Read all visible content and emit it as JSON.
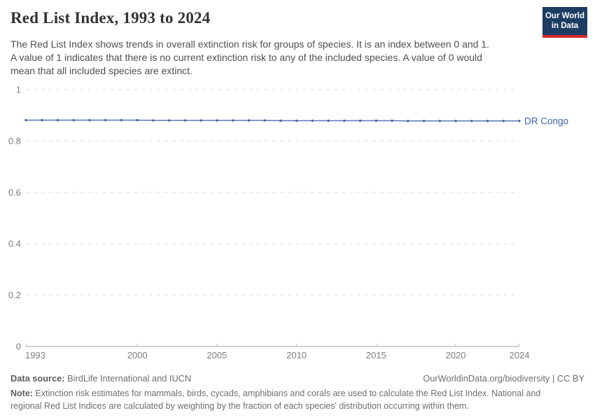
{
  "header": {
    "title": "Red List Index, 1993 to 2024",
    "subtitle": "The Red List Index shows trends in overall extinction risk for groups of species. It is an index between 0 and 1.\nA value of 1 indicates that there is no current extinction risk to any of the included species. A value of 0 would\nmean that all included species are extinct."
  },
  "logo": {
    "line1": "Our World",
    "line2": "in Data",
    "bg_color": "#1d3d63",
    "bar_color": "#d42b2f"
  },
  "chart_data": {
    "type": "line",
    "title": "Red List Index, 1993 to 2024",
    "xlabel": "",
    "ylabel": "",
    "xlim": [
      1993,
      2024
    ],
    "ylim": [
      0,
      1
    ],
    "xticks": [
      1993,
      2000,
      2005,
      2010,
      2015,
      2020,
      2024
    ],
    "yticks": [
      0,
      0.2,
      0.4,
      0.6,
      0.8,
      1
    ],
    "grid": "horizontal-dashed",
    "legend_position": "end-of-line-label",
    "series": [
      {
        "name": "DR Congo",
        "color": "#5878b4",
        "dot_color": "#43649f",
        "label_color": "#3d64a8",
        "x": [
          1993,
          1994,
          1995,
          1996,
          1997,
          1998,
          1999,
          2000,
          2001,
          2002,
          2003,
          2004,
          2005,
          2006,
          2007,
          2008,
          2009,
          2010,
          2011,
          2012,
          2013,
          2014,
          2015,
          2016,
          2017,
          2018,
          2019,
          2020,
          2021,
          2022,
          2023,
          2024
        ],
        "values": [
          0.881,
          0.881,
          0.881,
          0.881,
          0.881,
          0.881,
          0.881,
          0.881,
          0.88,
          0.88,
          0.88,
          0.88,
          0.88,
          0.88,
          0.88,
          0.88,
          0.879,
          0.879,
          0.879,
          0.879,
          0.879,
          0.879,
          0.879,
          0.879,
          0.878,
          0.878,
          0.878,
          0.878,
          0.878,
          0.878,
          0.878,
          0.878
        ]
      }
    ],
    "colors": {
      "grid": "#dcdcdc",
      "axis": "#a3a3a3",
      "tick_mark": "#c6c6c6",
      "axis_label": "#7f7f7f"
    }
  },
  "footer": {
    "datasource_label": "Data source:",
    "datasource_value": " BirdLife International and IUCN",
    "attribution": "OurWorldinData.org/biodiversity | CC BY",
    "note_label": "Note:",
    "note_text": " Extinction risk estimates for mammals, birds, cycads, amphibians and corals are used to calculate the Red List Index. National and\nregional Red List Indices are calculated by weighting by the fraction of each species' distribution occurring within them."
  }
}
